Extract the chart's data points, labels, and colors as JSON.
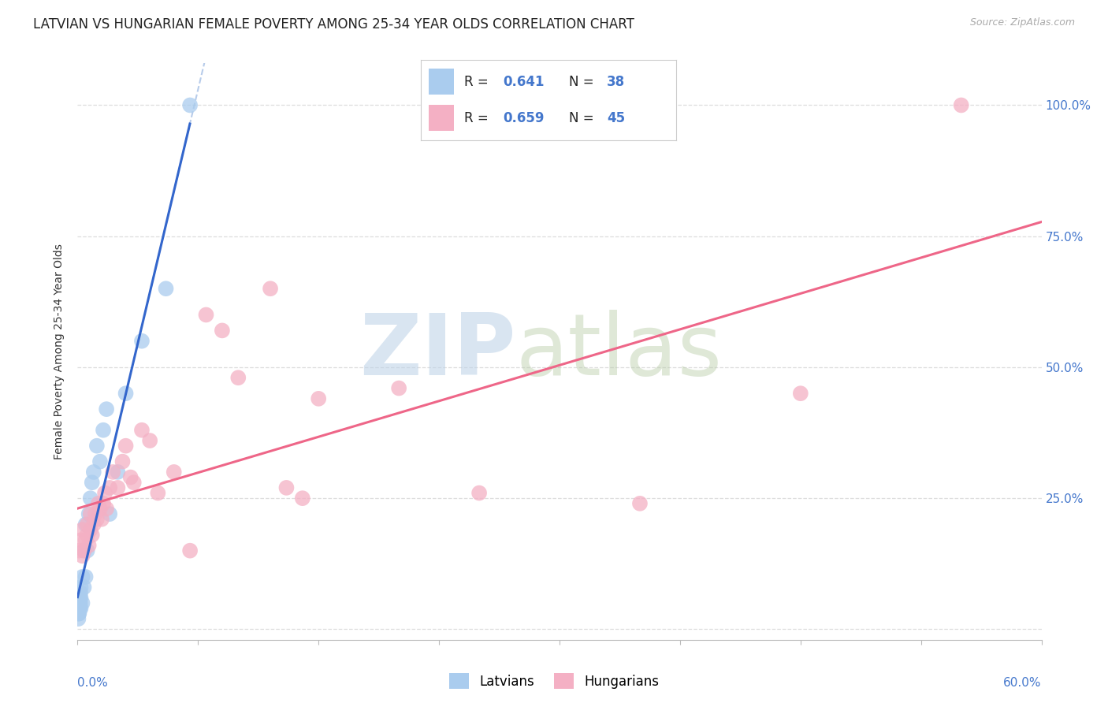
{
  "title": "LATVIAN VS HUNGARIAN FEMALE POVERTY AMONG 25-34 YEAR OLDS CORRELATION CHART",
  "source": "Source: ZipAtlas.com",
  "ylabel": "Female Poverty Among 25-34 Year Olds",
  "xlim": [
    0.0,
    0.6
  ],
  "ylim": [
    -0.02,
    1.08
  ],
  "yticks": [
    0.0,
    0.25,
    0.5,
    0.75,
    1.0
  ],
  "ytick_labels_right": [
    "",
    "25.0%",
    "50.0%",
    "75.0%",
    "100.0%"
  ],
  "bg_color": "#ffffff",
  "latvian_color": "#aaccee",
  "hungarian_color": "#f4b0c4",
  "latvian_line_color": "#3366cc",
  "latvian_line_dashed_color": "#88aadd",
  "hungarian_line_color": "#ee6688",
  "legend_text_color": "#4477cc",
  "R_latvian": "0.641",
  "N_latvian": "38",
  "R_hungarian": "0.659",
  "N_hungarian": "45",
  "latvian_x": [
    0.0005,
    0.0006,
    0.0007,
    0.0008,
    0.0009,
    0.001,
    0.001,
    0.001,
    0.0012,
    0.0013,
    0.0014,
    0.0015,
    0.0016,
    0.0018,
    0.002,
    0.002,
    0.002,
    0.003,
    0.003,
    0.004,
    0.004,
    0.005,
    0.005,
    0.006,
    0.007,
    0.008,
    0.009,
    0.01,
    0.012,
    0.014,
    0.016,
    0.018,
    0.02,
    0.025,
    0.03,
    0.04,
    0.055,
    0.07
  ],
  "latvian_y": [
    0.02,
    0.03,
    0.03,
    0.04,
    0.04,
    0.03,
    0.05,
    0.06,
    0.04,
    0.05,
    0.04,
    0.06,
    0.05,
    0.07,
    0.04,
    0.06,
    0.08,
    0.05,
    0.1,
    0.08,
    0.15,
    0.1,
    0.2,
    0.15,
    0.22,
    0.25,
    0.28,
    0.3,
    0.35,
    0.32,
    0.38,
    0.42,
    0.22,
    0.3,
    0.45,
    0.55,
    0.65,
    1.0
  ],
  "hungarian_x": [
    0.001,
    0.002,
    0.003,
    0.003,
    0.004,
    0.005,
    0.006,
    0.006,
    0.007,
    0.008,
    0.008,
    0.009,
    0.01,
    0.011,
    0.012,
    0.013,
    0.014,
    0.015,
    0.016,
    0.017,
    0.018,
    0.02,
    0.022,
    0.025,
    0.028,
    0.03,
    0.033,
    0.035,
    0.04,
    0.045,
    0.05,
    0.06,
    0.07,
    0.08,
    0.09,
    0.1,
    0.12,
    0.13,
    0.14,
    0.15,
    0.2,
    0.25,
    0.35,
    0.45,
    0.55
  ],
  "hungarian_y": [
    0.15,
    0.17,
    0.14,
    0.19,
    0.15,
    0.17,
    0.18,
    0.2,
    0.16,
    0.19,
    0.22,
    0.18,
    0.2,
    0.22,
    0.21,
    0.24,
    0.23,
    0.21,
    0.24,
    0.26,
    0.23,
    0.27,
    0.3,
    0.27,
    0.32,
    0.35,
    0.29,
    0.28,
    0.38,
    0.36,
    0.26,
    0.3,
    0.15,
    0.6,
    0.57,
    0.48,
    0.65,
    0.27,
    0.25,
    0.44,
    0.46,
    0.26,
    0.24,
    0.45,
    1.0
  ],
  "grid_color": "#dddddd",
  "title_fontsize": 12,
  "label_fontsize": 10,
  "tick_fontsize": 11
}
